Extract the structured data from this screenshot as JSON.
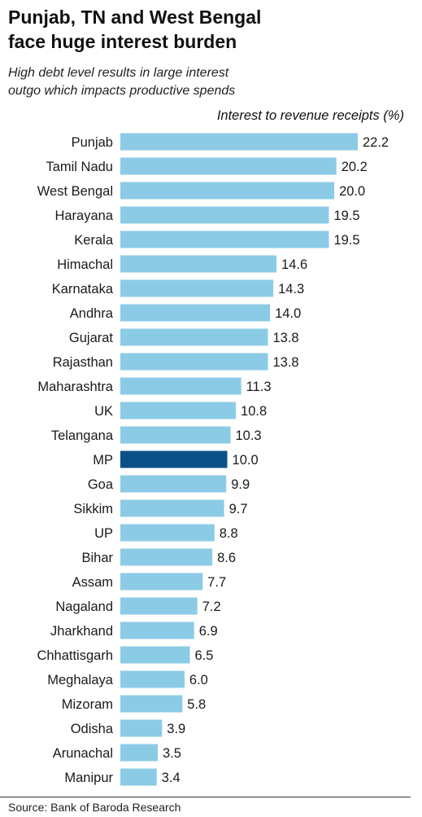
{
  "header": {
    "title_line1": "Punjab, TN and West Bengal",
    "title_line2": "face huge interest burden",
    "subtitle_line1": "High debt level results in large interest",
    "subtitle_line2": "outgo which impacts productive spends"
  },
  "colors": {
    "bar": "#8ccbe6",
    "highlight": "#0b5189",
    "text": "#1a1a1a"
  },
  "chart_data": {
    "type": "bar",
    "orientation": "horizontal",
    "axis_label": "Interest to revenue receipts (%)",
    "categories": [
      "Punjab",
      "Tamil Nadu",
      "West Bengal",
      "Harayana",
      "Kerala",
      "Himachal",
      "Karnataka",
      "Andhra",
      "Gujarat",
      "Rajasthan",
      "Maharashtra",
      "UK",
      "Telangana",
      "MP",
      "Goa",
      "Sikkim",
      "UP",
      "Bihar",
      "Assam",
      "Nagaland",
      "Jharkhand",
      "Chhattisgarh",
      "Meghalaya",
      "Mizoram",
      "Odisha",
      "Arunachal",
      "Manipur"
    ],
    "values": [
      22.2,
      20.2,
      20.0,
      19.5,
      19.5,
      14.6,
      14.3,
      14.0,
      13.8,
      13.8,
      11.3,
      10.8,
      10.3,
      10.0,
      9.9,
      9.7,
      8.8,
      8.6,
      7.7,
      7.2,
      6.9,
      6.5,
      6.0,
      5.8,
      3.9,
      3.5,
      3.4
    ],
    "value_labels": [
      "22.2",
      "20.2",
      "20.0",
      "19.5",
      "19.5",
      "14.6",
      "14.3",
      "14.0",
      "13.8",
      "13.8",
      "11.3",
      "10.8",
      "10.3",
      "10.0",
      "9.9",
      "9.7",
      "8.8",
      "8.6",
      "7.7",
      "7.2",
      "6.9",
      "6.5",
      "6.0",
      "5.8",
      "3.9",
      "3.5",
      "3.4"
    ],
    "highlighted": "MP"
  },
  "footer": {
    "source": "Source: Bank of Baroda Research"
  }
}
